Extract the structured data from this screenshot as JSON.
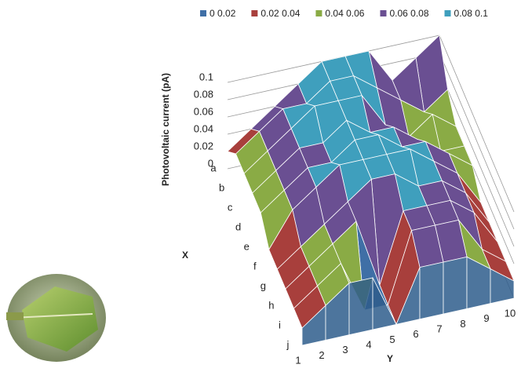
{
  "chart_data": {
    "type": "surface",
    "z_label": "Photovoltaic current (pA)",
    "x_label": "X",
    "y_label": "Y",
    "xcategories": [
      "a",
      "b",
      "c",
      "d",
      "e",
      "f",
      "g",
      "h",
      "i",
      "j"
    ],
    "ycategories": [
      "1",
      "2",
      "3",
      "4",
      "5",
      "6",
      "7",
      "8",
      "9",
      "10"
    ],
    "values": [
      [
        0.02,
        0.04,
        0.06,
        0.08,
        0.1,
        0.1,
        0.1,
        0.06,
        0.08,
        0.1
      ],
      [
        0.04,
        0.06,
        0.08,
        0.08,
        0.1,
        0.1,
        0.08,
        0.06,
        0.04,
        0.06
      ],
      [
        0.04,
        0.06,
        0.08,
        0.1,
        0.1,
        0.1,
        0.06,
        0.04,
        0.06,
        0.04
      ],
      [
        0.04,
        0.06,
        0.08,
        0.08,
        0.1,
        0.08,
        0.08,
        0.06,
        0.04,
        0.04
      ],
      [
        0.04,
        0.06,
        0.08,
        0.08,
        0.1,
        0.1,
        0.08,
        0.08,
        0.06,
        0.04
      ],
      [
        0.02,
        0.06,
        0.08,
        0.1,
        0.1,
        0.1,
        0.1,
        0.08,
        0.06,
        0.02
      ],
      [
        0.02,
        0.04,
        0.06,
        0.08,
        0.1,
        0.1,
        0.08,
        0.08,
        0.06,
        0.02
      ],
      [
        0.02,
        0.04,
        0.06,
        0.08,
        0,
        0.08,
        0.08,
        0.08,
        0.06,
        0.02
      ],
      [
        0.02,
        0.04,
        0.06,
        0,
        0,
        0.08,
        0.08,
        0.08,
        0.04,
        0.02
      ],
      [
        0.02,
        0.04,
        0.06,
        0.06,
        0,
        0.06,
        0.06,
        0.06,
        0.04,
        0.02
      ]
    ],
    "zlim": [
      0,
      0.1
    ],
    "zticks": [
      0,
      0.02,
      0.04,
      0.06,
      0.08,
      0.1
    ],
    "series": [
      {
        "name": "0 0.02",
        "color": "#3f6fa6"
      },
      {
        "name": "0.02 0.04",
        "color": "#a83f3c"
      },
      {
        "name": "0.04 0.06",
        "color": "#8aab45"
      },
      {
        "name": "0.06 0.08",
        "color": "#6a4f92"
      },
      {
        "name": "0.08 0.1",
        "color": "#3f9fbd"
      }
    ]
  }
}
